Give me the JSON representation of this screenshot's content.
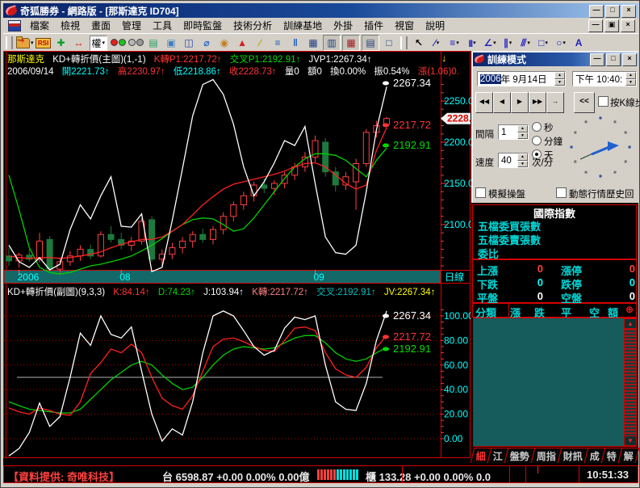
{
  "window": {
    "title": "奇狐勝券 - 網路版 - [那斯達克 ID704]"
  },
  "icons": {
    "minimize": "—",
    "maximize": "□",
    "close": "×",
    "restore": "▣",
    "caret": "▾",
    "anchor_down": "↓",
    "compass": "⊕",
    "scroll_up": "▲",
    "scroll_down": "▼"
  },
  "menu": {
    "items": [
      {
        "name": "file",
        "label": "檔案"
      },
      {
        "name": "view",
        "label": "檢視"
      },
      {
        "name": "screen",
        "label": "畫面"
      },
      {
        "name": "manage",
        "label": "管理"
      },
      {
        "name": "tools",
        "label": "工具"
      },
      {
        "name": "realtime-monitor",
        "label": "即時監盤"
      },
      {
        "name": "technical-analysis",
        "label": "技術分析"
      },
      {
        "name": "training-base",
        "label": "訓練基地"
      },
      {
        "name": "addons",
        "label": "外掛"
      },
      {
        "name": "plugins",
        "label": "插件"
      },
      {
        "name": "window",
        "label": "視窗"
      },
      {
        "name": "help",
        "label": "說明"
      }
    ]
  },
  "toolbar": {
    "items": [
      {
        "name": "grip"
      },
      {
        "name": "open-chart",
        "type": "folder",
        "caret": true
      },
      {
        "name": "rsi",
        "type": "rsi",
        "label": "RSI"
      },
      {
        "name": "pan",
        "glyph": "✚",
        "color": "#00a020"
      },
      {
        "name": "compress-bars",
        "glyph": "↔",
        "color": "#d01010"
      },
      {
        "name": "rights",
        "type": "combo",
        "label": "權",
        "caret": true
      },
      {
        "name": "traffic-light-on",
        "type": "dots",
        "dots": [
          "#e02020",
          "#20c020"
        ]
      },
      {
        "name": "traffic-light-off",
        "type": "dots",
        "dots": [
          "#b8b8b8",
          "#989898"
        ]
      },
      {
        "name": "quote-page",
        "glyph": "▤",
        "color": "#20a060"
      },
      {
        "name": "copy-pages",
        "glyph": "▣",
        "color": "#4080c0"
      },
      {
        "name": "book",
        "glyph": "◫",
        "color": "#2040a0"
      },
      {
        "name": "zoom-lens",
        "glyph": "⌀",
        "color": "#2060c0"
      },
      {
        "name": "stamp",
        "glyph": "◉",
        "color": "#c08020"
      },
      {
        "name": "alarm",
        "glyph": "▲",
        "color": "#d02020"
      },
      {
        "name": "broom",
        "glyph": "∕",
        "color": "#c0a000"
      },
      {
        "name": "layout-rows",
        "glyph": "≡",
        "color": "#2060c0"
      },
      {
        "name": "layout-cols",
        "glyph": "‖",
        "color": "#2060c0"
      },
      {
        "name": "chart-window-1",
        "glyph": "▦",
        "color": "#204080"
      },
      {
        "name": "chart-window-2",
        "glyph": "▥",
        "color": "#204080",
        "pressed": true
      },
      {
        "name": "chart-window-3",
        "glyph": "▦",
        "color": "#a02020",
        "pressed": true
      },
      {
        "name": "chart-window-4",
        "glyph": "▤",
        "color": "#204080",
        "pressed": true
      },
      {
        "name": "image-window",
        "glyph": "□",
        "color": "#204080"
      },
      {
        "name": "grip"
      },
      {
        "name": "pointer-tool",
        "glyph": "↖",
        "color": "#000000"
      },
      {
        "name": "line-tool",
        "glyph": "∕",
        "color": "#2020c0",
        "caret": true
      },
      {
        "name": "hline-tool",
        "glyph": "≡",
        "color": "#2020c0",
        "caret": true
      },
      {
        "name": "vlines-tool",
        "glyph": "|||",
        "color": "#2020c0",
        "caret": true
      },
      {
        "name": "fan-tool",
        "glyph": "∠",
        "color": "#2020c0",
        "caret": true
      },
      {
        "name": "channel-tool",
        "glyph": "∥",
        "color": "#2020c0",
        "caret": true
      },
      {
        "name": "hatch-tool",
        "glyph": "⫻",
        "color": "#2020c0",
        "caret": true
      },
      {
        "name": "rect-tool",
        "glyph": "□",
        "color": "#2020c0",
        "caret": true
      },
      {
        "name": "ellipse-tool",
        "glyph": "○",
        "color": "#2020c0",
        "caret": true
      },
      {
        "name": "text-tool",
        "glyph": "A",
        "color": "#2020c0"
      }
    ]
  },
  "chart_header": {
    "symbol": "那斯達克",
    "indicator": "KD+轉折價(主圖)(1,-1)",
    "kzhuan": "K轉P1:2217.72↑",
    "jiaocha": "交叉P1:2192.91↑",
    "jvp": "JVP1:2267.34↑",
    "date": "2006/09/14",
    "open": "開2221.73↑",
    "high": "高2230.97↑",
    "low": "低2218.86↑",
    "close": "收2228.73↑",
    "volume": "量0",
    "amount": "額0",
    "turnover": "換0.00%",
    "amplitude": "振0.54%",
    "change": "漲(1.06)0."
  },
  "sub_header": {
    "indicator": "KD+轉折價(副圖)(9,3,3)",
    "k": "K:84.14↑",
    "d": "D:74.23↑",
    "j": "J:103.94↑",
    "kzhuan": "K轉:2217.72↑",
    "jiaocha": "交叉:2192.91↑",
    "jv": "JV:2267.34↑"
  },
  "chart_data": [
    {
      "type": "candlestick",
      "title": "那斯達克 KD+轉折價(主圖) 日線",
      "x_labels": [
        {
          "text": "2006",
          "index": 1
        },
        {
          "text": "08",
          "index": 11
        },
        {
          "text": "09",
          "index": 30
        }
      ],
      "y_ticks": [
        "2250.0",
        "2200.0",
        "2150.0",
        "2100.0"
      ],
      "ylim": [
        2047,
        2279
      ],
      "current_price_tag": "2228.7",
      "period_label": "日線",
      "colors": {
        "up": "#ff4040",
        "down": "#1d7a3c",
        "white_line": "#ffffff",
        "red_line": "#ff2020",
        "green_line": "#00d000",
        "axis_text": "#00ffff",
        "frame": "#d40000",
        "month_bar": "#156868"
      },
      "line_labels": [
        {
          "text": "2267.34",
          "color": "#ffffff"
        },
        {
          "text": "2217.72",
          "color": "#ff3434"
        },
        {
          "text": "2192.91",
          "color": "#00dc00"
        }
      ],
      "candles": [
        [
          2062,
          2072,
          2050,
          2056
        ],
        [
          2056,
          2066,
          2048,
          2063
        ],
        [
          2063,
          2070,
          2055,
          2058
        ],
        [
          2058,
          2090,
          2054,
          2080
        ],
        [
          2082,
          2086,
          2042,
          2046
        ],
        [
          2046,
          2060,
          2040,
          2055
        ],
        [
          2055,
          2068,
          2050,
          2062
        ],
        [
          2062,
          2075,
          2056,
          2070
        ],
        [
          2070,
          2076,
          2058,
          2062
        ],
        [
          2062,
          2092,
          2060,
          2088
        ],
        [
          2088,
          2098,
          2078,
          2082
        ],
        [
          2082,
          2090,
          2070,
          2075
        ],
        [
          2075,
          2085,
          2068,
          2080
        ],
        [
          2080,
          2108,
          2076,
          2104
        ],
        [
          2106,
          2110,
          2055,
          2058
        ],
        [
          2058,
          2070,
          2050,
          2064
        ],
        [
          2064,
          2078,
          2058,
          2072
        ],
        [
          2072,
          2085,
          2065,
          2080
        ],
        [
          2080,
          2092,
          2072,
          2088
        ],
        [
          2088,
          2095,
          2078,
          2082
        ],
        [
          2082,
          2098,
          2076,
          2094
        ],
        [
          2094,
          2115,
          2088,
          2110
        ],
        [
          2110,
          2128,
          2104,
          2124
        ],
        [
          2124,
          2140,
          2118,
          2135
        ],
        [
          2135,
          2152,
          2128,
          2148
        ],
        [
          2148,
          2156,
          2138,
          2144
        ],
        [
          2144,
          2154,
          2136,
          2150
        ],
        [
          2150,
          2164,
          2144,
          2160
        ],
        [
          2160,
          2175,
          2154,
          2170
        ],
        [
          2170,
          2188,
          2164,
          2182
        ],
        [
          2182,
          2208,
          2176,
          2202
        ],
        [
          2200,
          2205,
          2158,
          2164
        ],
        [
          2164,
          2170,
          2140,
          2148
        ],
        [
          2148,
          2164,
          2142,
          2158
        ],
        [
          2152,
          2180,
          2118,
          2174
        ],
        [
          2174,
          2216,
          2170,
          2212
        ],
        [
          2212,
          2226,
          2206,
          2220
        ],
        [
          2221.73,
          2230.97,
          2218.86,
          2228.73
        ]
      ],
      "series": [
        {
          "name": "JVP",
          "color": "#ffffff",
          "values": [
            2075,
            2055,
            2048,
            2060,
            2045,
            2052,
            2094,
            2124,
            2107,
            2135,
            2158,
            2098,
            2097,
            2113,
            2043,
            2048,
            2105,
            2168,
            2232,
            2270,
            2276,
            2258,
            2222,
            2170,
            2135,
            2152,
            2175,
            2202,
            2196,
            2219,
            2150,
            2085,
            2066,
            2064,
            2075,
            2140,
            2215,
            2267.34
          ]
        },
        {
          "name": "K轉P",
          "color": "#ff2020",
          "values": [
            2062,
            2060,
            2059,
            2060,
            2060,
            2059,
            2060,
            2062,
            2064,
            2067,
            2072,
            2076,
            2079,
            2082,
            2082,
            2085,
            2092,
            2100,
            2112,
            2124,
            2134,
            2143,
            2149,
            2152,
            2155,
            2158,
            2161,
            2165,
            2170,
            2174,
            2175,
            2170,
            2160,
            2150,
            2143,
            2148,
            2190,
            2217.72
          ]
        },
        {
          "name": "交叉P",
          "color": "#00d000",
          "values": [
            2160,
            2118,
            2072,
            2048,
            2042,
            2040,
            2042,
            2046,
            2050,
            2052,
            2055,
            2058,
            2062,
            2068,
            2075,
            2083,
            2092,
            2100,
            2106,
            2108,
            2107,
            2100,
            2092,
            2095,
            2108,
            2124,
            2140,
            2156,
            2170,
            2180,
            2186,
            2186,
            2184,
            2178,
            2168,
            2158,
            2178,
            2192.91
          ]
        }
      ]
    },
    {
      "type": "line",
      "title": "KD+轉折價(副圖)(9,3,3)",
      "y_ticks": [
        "100.00",
        "80.00",
        "60.00",
        "40.00",
        "20.00",
        "0.00"
      ],
      "ylim": [
        -4,
        108
      ],
      "grid_levels": [
        0,
        20,
        40,
        60,
        80,
        100
      ],
      "mid_level": 50,
      "line_labels": [
        {
          "text": "2267.34",
          "color": "#ffffff"
        },
        {
          "text": "2217.72",
          "color": "#ff3434"
        },
        {
          "text": "2192.91",
          "color": "#00dc00"
        }
      ],
      "series": [
        {
          "name": "J",
          "color": "#ffffff",
          "values": [
            -14,
            -8,
            5,
            29,
            10,
            18,
            50,
            86,
            76,
            100,
            85,
            82,
            91,
            55,
            20,
            -2,
            8,
            3,
            30,
            70,
            100,
            104,
            100,
            88,
            75,
            68,
            72,
            90,
            99,
            97,
            100,
            60,
            30,
            24,
            23,
            45,
            80,
            103.94
          ]
        },
        {
          "name": "K",
          "color": "#ff2020",
          "values": [
            25,
            22,
            20,
            25,
            23,
            20,
            19,
            30,
            53,
            62,
            73,
            70,
            77,
            70,
            50,
            33,
            27,
            24,
            35,
            55,
            75,
            81,
            82,
            79,
            75,
            72,
            71,
            80,
            90,
            91,
            88,
            70,
            57,
            52,
            50,
            58,
            74,
            84.14
          ]
        },
        {
          "name": "D",
          "color": "#00d000",
          "values": [
            30,
            27,
            24,
            23,
            22,
            21,
            21,
            24,
            32,
            40,
            48,
            54,
            60,
            63,
            60,
            52,
            45,
            40,
            42,
            50,
            60,
            68,
            73,
            75,
            74,
            73,
            74,
            78,
            82,
            84,
            84,
            78,
            70,
            65,
            63,
            65,
            70,
            74.23
          ]
        }
      ]
    }
  ],
  "training": {
    "title": "訓練模式",
    "date_selected": "2006",
    "date_rest": "年 9月14日",
    "time_value": "下午 10:40:",
    "playback": [
      "◀◀",
      "◀",
      "▶",
      "▶▶",
      "→"
    ],
    "collapse_label": "<<",
    "step_checkbox": "按K線步",
    "interval_label": "間隔",
    "interval_value": "1",
    "units": [
      "秒",
      "分鐘",
      "天"
    ],
    "unit_selected": "天",
    "speed_label": "速度",
    "speed_value": "40",
    "speed_unit": "次/分",
    "sim_checkbox": "模擬操盤",
    "dynamic_checkbox": "動態行情歷史回"
  },
  "intl": {
    "title": "國際指數",
    "rows": [
      "五檔委買張數",
      "五檔委賣張數",
      "委比"
    ],
    "stats": [
      {
        "name": "up",
        "label": "上漲",
        "value": "0",
        "color": "#ff4040"
      },
      {
        "name": "limit-up",
        "label": "漲停",
        "value": "0",
        "color": "#ff4040"
      },
      {
        "name": "down",
        "label": "下跌",
        "value": "0",
        "color": "#00ffff"
      },
      {
        "name": "limit-down",
        "label": "跌停",
        "value": "0",
        "color": "#00ffff"
      },
      {
        "name": "flat",
        "label": "平盤",
        "value": "0",
        "color": "#ffffff"
      },
      {
        "name": "no-trade",
        "label": "空盤",
        "value": "0",
        "color": "#ffffff"
      }
    ],
    "table_headers": [
      "分類",
      "漲",
      "跌",
      "平",
      "空",
      "額"
    ]
  },
  "tabs": {
    "active_index": 0,
    "items": [
      "細",
      "江",
      "盤勢",
      "周指",
      "財訊",
      "成",
      "特",
      "解"
    ]
  },
  "status_bar": {
    "provider": "【資料提供: 奇唯科技】",
    "taiex": "台 6598.87 +0.00 0.00% 0.00億",
    "otc": "櫃 133.28 +0.00 0.00% 0.0",
    "time": "10:51:33",
    "bars_red": 6,
    "bars_cyan": 7,
    "bar_red_color": "#ff4040",
    "bar_cyan_color": "#00e0e0"
  }
}
